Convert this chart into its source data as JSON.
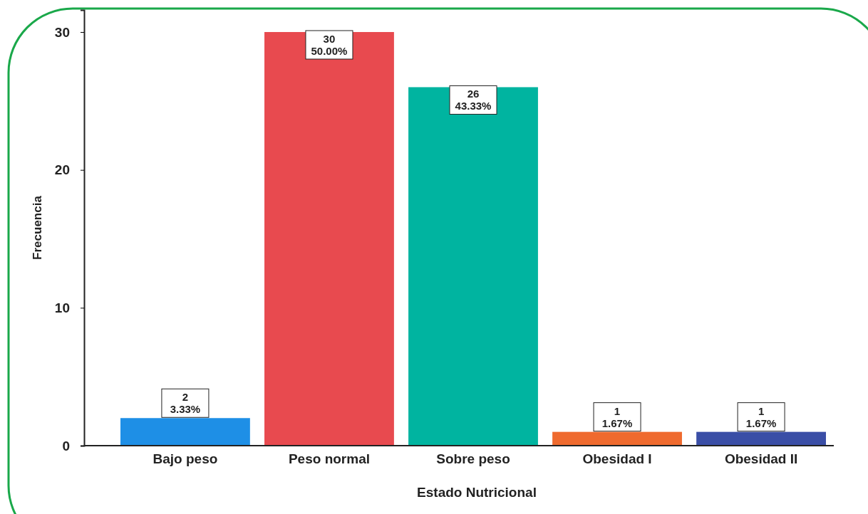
{
  "chart_data": {
    "type": "bar",
    "xlabel": "Estado Nutricional",
    "ylabel": "Frecuencia",
    "categories": [
      "Bajo peso",
      "Peso normal",
      "Sobre peso",
      "Obesidad I",
      "Obesidad II"
    ],
    "values": [
      2,
      30,
      26,
      1,
      1
    ],
    "colors": [
      "#1e8fe6",
      "#e84a4f",
      "#00b4a0",
      "#ef6a2e",
      "#3a4ea6"
    ],
    "value_labels": [
      "2\n3.33%",
      "30\n50.00%",
      "26\n43.33%",
      "1\n1.67%",
      "1\n1.67%"
    ],
    "ylim": [
      0,
      31.6
    ],
    "yticks": [
      0,
      10,
      20,
      30
    ],
    "grid": false
  }
}
